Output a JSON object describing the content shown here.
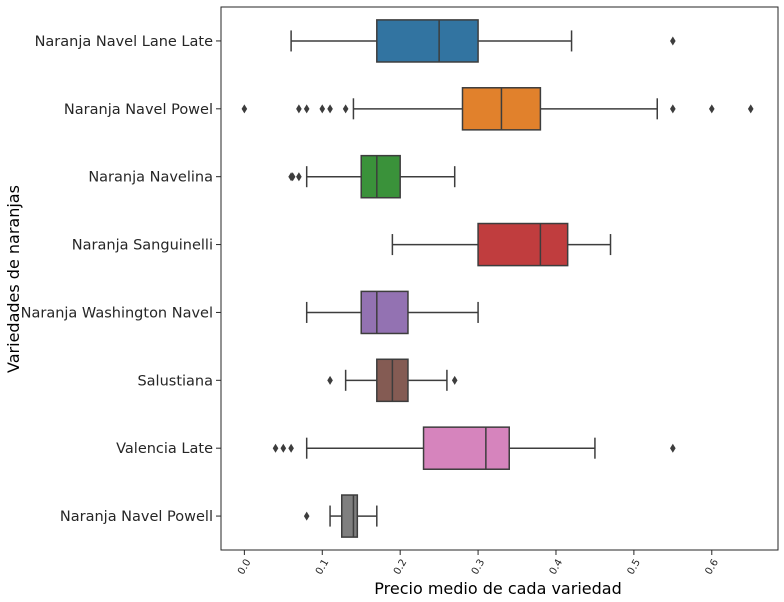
{
  "chart_data": {
    "type": "boxplot",
    "orientation": "horizontal",
    "xlabel": "Precio medio de cada variedad",
    "ylabel": "Variedades de naranjas",
    "xlim": [
      -0.03,
      0.685
    ],
    "xticks": [
      0.0,
      0.1,
      0.2,
      0.3,
      0.4,
      0.5,
      0.6
    ],
    "xtick_labels": [
      "0.0",
      "0.1",
      "0.2",
      "0.3",
      "0.4",
      "0.5",
      "0.6"
    ],
    "xtick_rotation": 60,
    "grid": false,
    "legend": "none",
    "categories": [
      "Naranja Navel Lane Late",
      "Naranja Navel Powel",
      "Naranja Navelina",
      "Naranja Sanguinelli",
      "Naranja Washington Navel",
      "Salustiana",
      "Valencia Late",
      "Naranja Navel Powell"
    ],
    "series": [
      {
        "whisker_low": 0.06,
        "q1": 0.17,
        "median": 0.25,
        "q3": 0.3,
        "whisker_high": 0.42,
        "outliers": [
          0.55
        ],
        "color": "#3274a1"
      },
      {
        "whisker_low": 0.14,
        "q1": 0.28,
        "median": 0.33,
        "q3": 0.38,
        "whisker_high": 0.53,
        "outliers": [
          0.0,
          0.07,
          0.08,
          0.1,
          0.11,
          0.13,
          0.55,
          0.6,
          0.65
        ],
        "color": "#e1812c"
      },
      {
        "whisker_low": 0.08,
        "q1": 0.15,
        "median": 0.17,
        "q3": 0.2,
        "whisker_high": 0.27,
        "outliers": [
          0.06,
          0.062,
          0.07
        ],
        "color": "#3a923a"
      },
      {
        "whisker_low": 0.19,
        "q1": 0.3,
        "median": 0.38,
        "q3": 0.415,
        "whisker_high": 0.47,
        "outliers": [],
        "color": "#c03d3e"
      },
      {
        "whisker_low": 0.08,
        "q1": 0.15,
        "median": 0.17,
        "q3": 0.21,
        "whisker_high": 0.3,
        "outliers": [],
        "color": "#9372b2"
      },
      {
        "whisker_low": 0.13,
        "q1": 0.17,
        "median": 0.19,
        "q3": 0.21,
        "whisker_high": 0.26,
        "outliers": [
          0.11,
          0.27
        ],
        "color": "#845b53"
      },
      {
        "whisker_low": 0.08,
        "q1": 0.23,
        "median": 0.31,
        "q3": 0.34,
        "whisker_high": 0.45,
        "outliers": [
          0.04,
          0.05,
          0.06,
          0.55
        ],
        "color": "#d684bd"
      },
      {
        "whisker_low": 0.11,
        "q1": 0.125,
        "median": 0.14,
        "q3": 0.145,
        "whisker_high": 0.17,
        "outliers": [
          0.08
        ],
        "color": "#7f7f7f"
      }
    ]
  }
}
